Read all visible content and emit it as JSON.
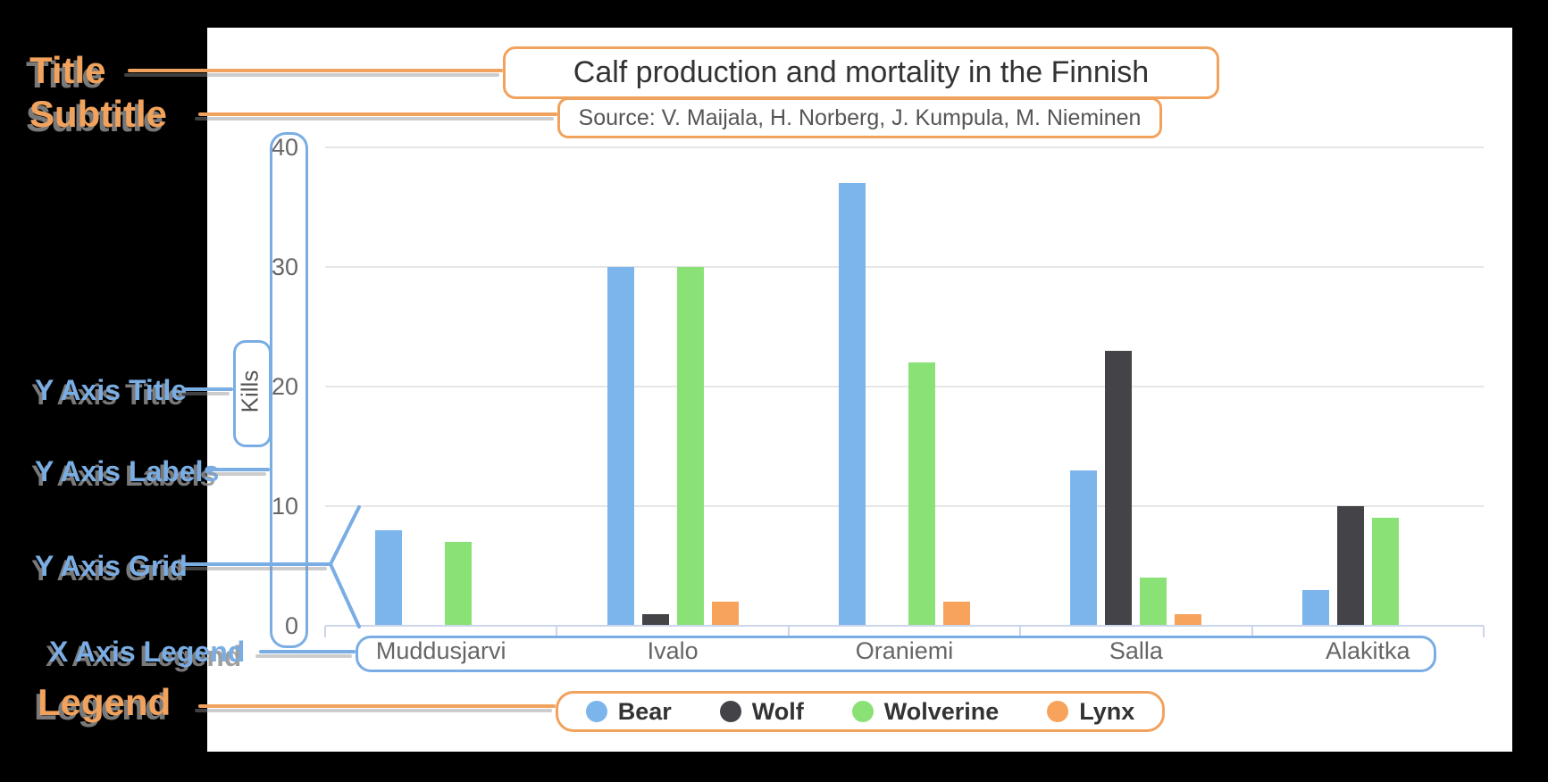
{
  "annotations": {
    "title_label": "Title",
    "subtitle_label": "Subtitle",
    "y_axis_title_label": "Y Axis Title",
    "y_axis_labels_label": "Y Axis Labels",
    "y_axis_grid_label": "Y Axis Grid",
    "x_axis_legend_label": "X Axis Legend",
    "legend_label": "Legend",
    "orange_color": "#f1a25c",
    "blue_color": "#7aade4"
  },
  "chart_data": {
    "type": "bar",
    "title": "Calf production and mortality in the Finnish",
    "subtitle": "Source: V. Maijala, H. Norberg, J. Kumpula, M. Nieminen",
    "ylabel": "Kills",
    "xlabel": "",
    "ylim": [
      0,
      40
    ],
    "yticks": [
      0,
      10,
      20,
      30,
      40
    ],
    "grid": "horizontal",
    "legend_position": "bottom",
    "categories": [
      "Muddusjarvi",
      "Ivalo",
      "Oraniemi",
      "Salla",
      "Alakitka"
    ],
    "series": [
      {
        "name": "Bear",
        "color": "#7cb5ec",
        "values": [
          8,
          30,
          37,
          13,
          3
        ]
      },
      {
        "name": "Wolf",
        "color": "#434348",
        "values": [
          0,
          1,
          0,
          23,
          10
        ]
      },
      {
        "name": "Wolverine",
        "color": "#8ae276",
        "values": [
          7,
          30,
          22,
          4,
          9
        ]
      },
      {
        "name": "Lynx",
        "color": "#f7a35c",
        "values": [
          0,
          2,
          2,
          1,
          0
        ]
      }
    ],
    "colors": {
      "grid": "#e6e6e6",
      "axis_line": "#ccd6eb",
      "axis_text": "#666666",
      "title_text": "#333333",
      "subtitle_text": "#555555"
    }
  }
}
